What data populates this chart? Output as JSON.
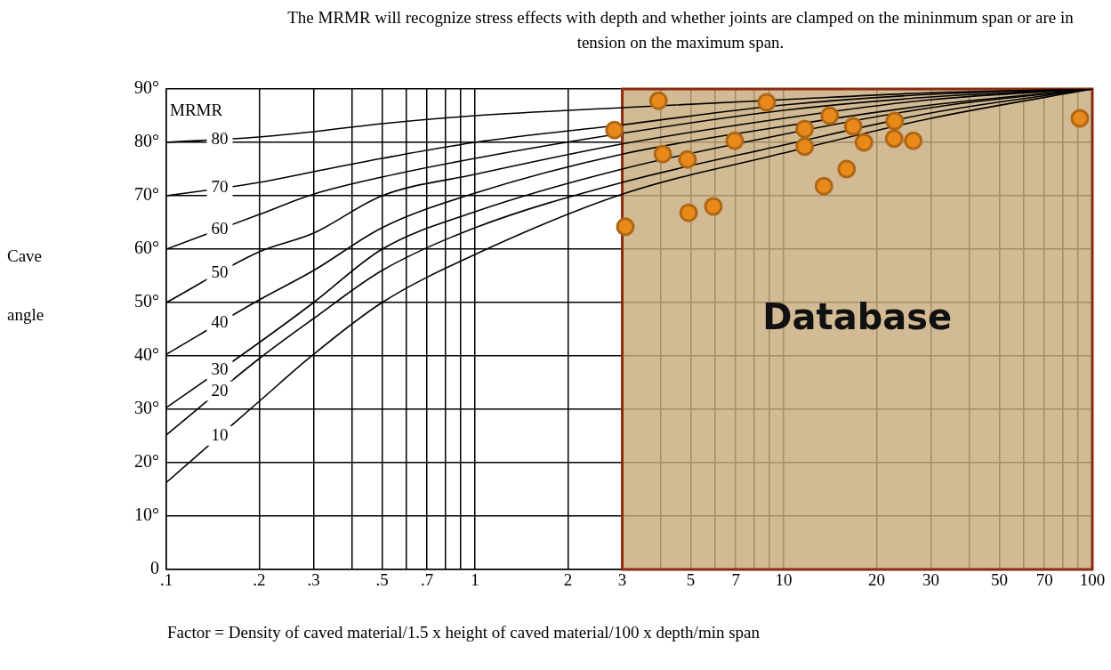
{
  "chart_data": {
    "type": "line",
    "title": "The MRMR will recognize stress effects with depth and whether joints are clamped on the mininmum span or are in tension on the maximum span.",
    "xlabel": "Factor = Density of caved material/1.5 x height of caved material/100 x depth/min span",
    "ylabel": "Cave angle",
    "annotations": [
      "MRMR"
    ],
    "log": "x",
    "grid": true,
    "legend": false,
    "marker": "none",
    "xlim": [
      0.1,
      100
    ],
    "xticks": [
      {
        "value": 0.1,
        "label": ".1"
      },
      {
        "value": 0.2,
        "label": ".2"
      },
      {
        "value": 0.3,
        "label": ".3"
      },
      {
        "value": 0.4,
        "label": null
      },
      {
        "value": 0.5,
        "label": ".5"
      },
      {
        "value": 0.6,
        "label": null
      },
      {
        "value": 0.7,
        "label": ".7"
      },
      {
        "value": 0.8,
        "label": null
      },
      {
        "value": 0.9,
        "label": null
      },
      1,
      2,
      3,
      {
        "value": 4,
        "label": null
      },
      5,
      {
        "value": 6,
        "label": null
      },
      7,
      {
        "value": 8,
        "label": null
      },
      {
        "value": 9,
        "label": null
      },
      10,
      20,
      30,
      {
        "value": 40,
        "label": null
      },
      50,
      {
        "value": 60,
        "label": null
      },
      70,
      {
        "value": 80,
        "label": null
      },
      {
        "value": 90,
        "label": null
      },
      100
    ],
    "ylim": [
      0,
      90
    ],
    "yticks": [
      0,
      {
        "value": 10,
        "label": "10°"
      },
      {
        "value": 20,
        "label": "20°"
      },
      {
        "value": 30,
        "label": "30°"
      },
      {
        "value": 40,
        "label": "40°"
      },
      {
        "value": 50,
        "label": "50°"
      },
      {
        "value": 60,
        "label": "60°"
      },
      {
        "value": 70,
        "label": "70°"
      },
      {
        "value": 80,
        "label": "80°"
      },
      {
        "value": 90,
        "label": "90°"
      }
    ],
    "bands": [
      {
        "axis": "x",
        "from": 3,
        "to": 100,
        "label": "Database",
        "color": "#c8ab7d"
      }
    ],
    "x": [
      0.1,
      0.2,
      0.3,
      0.5,
      1,
      3,
      10,
      30,
      100
    ],
    "series": [
      {
        "name": "80",
        "color": "#000000",
        "values": [
          80,
          81,
          82,
          83.5,
          85,
          86.5,
          88,
          89.3,
          90
        ]
      },
      {
        "name": "70",
        "color": "#000000",
        "values": [
          70,
          72.5,
          74.5,
          77,
          80,
          83.3,
          87,
          89,
          90
        ]
      },
      {
        "name": "60",
        "color": "#000000",
        "values": [
          60,
          66.5,
          70.3,
          73.5,
          77,
          81.7,
          86,
          88.5,
          90
        ]
      },
      {
        "name": "50",
        "color": "#000000",
        "values": [
          50,
          59.5,
          63,
          70,
          74,
          79.7,
          84.5,
          88,
          90
        ]
      },
      {
        "name": "40",
        "color": "#000000",
        "values": [
          40.3,
          50.5,
          56,
          64,
          70.5,
          77.8,
          83,
          87,
          90
        ]
      },
      {
        "name": "30",
        "color": "#000000",
        "values": [
          30.3,
          42.5,
          50,
          60,
          67,
          75,
          81.5,
          86.5,
          90
        ]
      },
      {
        "name": "20",
        "color": "#000000",
        "values": [
          25.2,
          39.5,
          47,
          56,
          64,
          72.5,
          79.5,
          85.5,
          90
        ]
      },
      {
        "name": "10",
        "color": "#000000",
        "values": [
          16.3,
          31.5,
          40.3,
          50,
          59,
          70.3,
          78,
          84.5,
          90
        ]
      },
      {
        "type": "scatter",
        "marker": "circle",
        "color": "#e8891a",
        "x": [
          2.83,
          3.07,
          3.93,
          4.06,
          4.88,
          4.92,
          5.92,
          6.94,
          8.81,
          11.7,
          11.7,
          14.1,
          16.8,
          18.2,
          16.0,
          13.5,
          22.9,
          22.8,
          26.3,
          91.1
        ],
        "values": [
          82.3,
          64.2,
          87.8,
          77.8,
          76.8,
          66.8,
          68.0,
          80.3,
          87.5,
          82.5,
          79.2,
          85.0,
          83.0,
          80.0,
          75.0,
          71.8,
          84.0,
          80.7,
          80.3,
          84.5
        ]
      }
    ]
  }
}
